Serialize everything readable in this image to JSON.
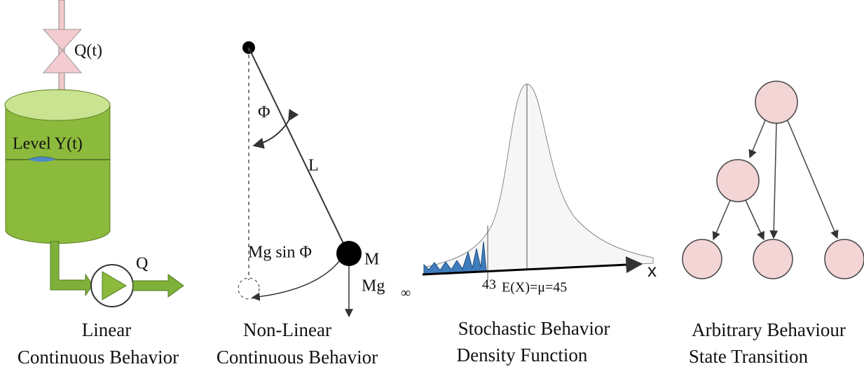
{
  "tank": {
    "inflow": "Q(t)",
    "level": "Level Y(t)",
    "outflow": "Q",
    "caption": [
      "Linear",
      "Continuous Behavior"
    ]
  },
  "pendulum": {
    "angle": "Φ",
    "length": "L",
    "force": "Mg sin Φ",
    "mass": "M",
    "weight": "Mg",
    "annotation": "∞",
    "caption": [
      "Non-Linear",
      "Continuous Behavior"
    ]
  },
  "distribution": {
    "axis": "x",
    "tick": "43",
    "mean": "E(X)=μ=45",
    "caption": [
      "Stochastic Behavior",
      "Density Function"
    ]
  },
  "state_graph": {
    "caption": [
      "Arbitrary Behaviour",
      "State Transition"
    ]
  }
}
